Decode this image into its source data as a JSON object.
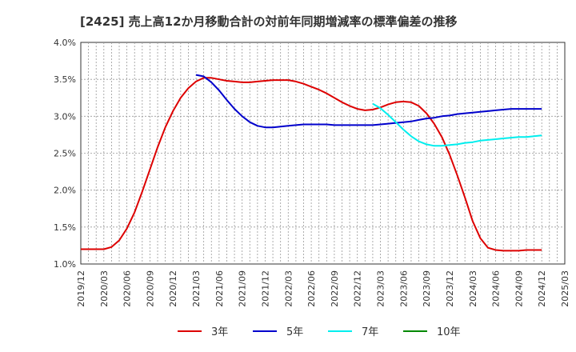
{
  "chart_data": {
    "type": "line",
    "title": "[2425]  売上高12か月移動合計の対前年同期増減率の標準偏差の推移",
    "xlabel": "",
    "ylabel": "",
    "x_ticks": [
      "2019/12",
      "2020/03",
      "2020/06",
      "2020/09",
      "2020/12",
      "2021/03",
      "2021/06",
      "2021/09",
      "2021/12",
      "2022/03",
      "2022/06",
      "2022/09",
      "2022/12",
      "2023/03",
      "2023/06",
      "2023/09",
      "2023/12",
      "2024/03",
      "2024/06",
      "2024/09",
      "2024/12",
      "2025/03"
    ],
    "y_ticks": [
      "1.0%",
      "1.5%",
      "2.0%",
      "2.5%",
      "3.0%",
      "3.5%",
      "4.0%"
    ],
    "ylim": [
      1.0,
      4.0
    ],
    "grid": true,
    "legend_position": "bottom",
    "series": [
      {
        "name": "3年",
        "color": "#dd0000",
        "points": [
          [
            "2019/12",
            1.2
          ],
          [
            "2020/01",
            1.2
          ],
          [
            "2020/02",
            1.2
          ],
          [
            "2020/03",
            1.2
          ],
          [
            "2020/04",
            1.23
          ],
          [
            "2020/05",
            1.32
          ],
          [
            "2020/06",
            1.48
          ],
          [
            "2020/07",
            1.7
          ],
          [
            "2020/08",
            1.98
          ],
          [
            "2020/09",
            2.28
          ],
          [
            "2020/10",
            2.58
          ],
          [
            "2020/11",
            2.85
          ],
          [
            "2020/12",
            3.07
          ],
          [
            "2021/01",
            3.25
          ],
          [
            "2021/02",
            3.38
          ],
          [
            "2021/03",
            3.47
          ],
          [
            "2021/04",
            3.52
          ],
          [
            "2021/05",
            3.52
          ],
          [
            "2021/06",
            3.5
          ],
          [
            "2021/07",
            3.48
          ],
          [
            "2021/08",
            3.47
          ],
          [
            "2021/09",
            3.46
          ],
          [
            "2021/10",
            3.46
          ],
          [
            "2021/11",
            3.47
          ],
          [
            "2021/12",
            3.48
          ],
          [
            "2022/01",
            3.49
          ],
          [
            "2022/02",
            3.49
          ],
          [
            "2022/03",
            3.49
          ],
          [
            "2022/04",
            3.47
          ],
          [
            "2022/05",
            3.44
          ],
          [
            "2022/06",
            3.4
          ],
          [
            "2022/07",
            3.36
          ],
          [
            "2022/08",
            3.31
          ],
          [
            "2022/09",
            3.25
          ],
          [
            "2022/10",
            3.19
          ],
          [
            "2022/11",
            3.14
          ],
          [
            "2022/12",
            3.1
          ],
          [
            "2023/01",
            3.08
          ],
          [
            "2023/02",
            3.09
          ],
          [
            "2023/03",
            3.12
          ],
          [
            "2023/04",
            3.16
          ],
          [
            "2023/05",
            3.19
          ],
          [
            "2023/06",
            3.2
          ],
          [
            "2023/07",
            3.19
          ],
          [
            "2023/08",
            3.14
          ],
          [
            "2023/09",
            3.04
          ],
          [
            "2023/10",
            2.9
          ],
          [
            "2023/11",
            2.72
          ],
          [
            "2023/12",
            2.48
          ],
          [
            "2024/01",
            2.2
          ],
          [
            "2024/02",
            1.9
          ],
          [
            "2024/03",
            1.58
          ],
          [
            "2024/04",
            1.35
          ],
          [
            "2024/05",
            1.22
          ],
          [
            "2024/06",
            1.19
          ],
          [
            "2024/07",
            1.18
          ],
          [
            "2024/08",
            1.18
          ],
          [
            "2024/09",
            1.18
          ],
          [
            "2024/10",
            1.19
          ],
          [
            "2024/11",
            1.19
          ],
          [
            "2024/12",
            1.19
          ]
        ]
      },
      {
        "name": "5年",
        "color": "#0000cc",
        "points": [
          [
            "2021/03",
            3.56
          ],
          [
            "2021/04",
            3.54
          ],
          [
            "2021/05",
            3.46
          ],
          [
            "2021/06",
            3.35
          ],
          [
            "2021/07",
            3.22
          ],
          [
            "2021/08",
            3.1
          ],
          [
            "2021/09",
            3.0
          ],
          [
            "2021/10",
            2.92
          ],
          [
            "2021/11",
            2.87
          ],
          [
            "2021/12",
            2.85
          ],
          [
            "2022/01",
            2.85
          ],
          [
            "2022/02",
            2.86
          ],
          [
            "2022/03",
            2.87
          ],
          [
            "2022/04",
            2.88
          ],
          [
            "2022/05",
            2.89
          ],
          [
            "2022/06",
            2.89
          ],
          [
            "2022/07",
            2.89
          ],
          [
            "2022/08",
            2.89
          ],
          [
            "2022/09",
            2.88
          ],
          [
            "2022/10",
            2.88
          ],
          [
            "2022/11",
            2.88
          ],
          [
            "2022/12",
            2.88
          ],
          [
            "2023/01",
            2.88
          ],
          [
            "2023/02",
            2.88
          ],
          [
            "2023/03",
            2.89
          ],
          [
            "2023/04",
            2.9
          ],
          [
            "2023/05",
            2.91
          ],
          [
            "2023/06",
            2.92
          ],
          [
            "2023/07",
            2.93
          ],
          [
            "2023/08",
            2.95
          ],
          [
            "2023/09",
            2.97
          ],
          [
            "2023/10",
            2.98
          ],
          [
            "2023/11",
            3.0
          ],
          [
            "2023/12",
            3.01
          ],
          [
            "2024/01",
            3.03
          ],
          [
            "2024/02",
            3.04
          ],
          [
            "2024/03",
            3.05
          ],
          [
            "2024/04",
            3.06
          ],
          [
            "2024/05",
            3.07
          ],
          [
            "2024/06",
            3.08
          ],
          [
            "2024/07",
            3.09
          ],
          [
            "2024/08",
            3.1
          ],
          [
            "2024/09",
            3.1
          ],
          [
            "2024/10",
            3.1
          ],
          [
            "2024/11",
            3.1
          ],
          [
            "2024/12",
            3.1
          ]
        ]
      },
      {
        "name": "7年",
        "color": "#00eeee",
        "points": [
          [
            "2023/02",
            3.17
          ],
          [
            "2023/03",
            3.11
          ],
          [
            "2023/04",
            3.02
          ],
          [
            "2023/05",
            2.92
          ],
          [
            "2023/06",
            2.82
          ],
          [
            "2023/07",
            2.73
          ],
          [
            "2023/08",
            2.66
          ],
          [
            "2023/09",
            2.62
          ],
          [
            "2023/10",
            2.6
          ],
          [
            "2023/11",
            2.6
          ],
          [
            "2023/12",
            2.61
          ],
          [
            "2024/01",
            2.62
          ],
          [
            "2024/02",
            2.64
          ],
          [
            "2024/03",
            2.65
          ],
          [
            "2024/04",
            2.67
          ],
          [
            "2024/05",
            2.68
          ],
          [
            "2024/06",
            2.69
          ],
          [
            "2024/07",
            2.7
          ],
          [
            "2024/08",
            2.71
          ],
          [
            "2024/09",
            2.72
          ],
          [
            "2024/10",
            2.72
          ],
          [
            "2024/11",
            2.73
          ],
          [
            "2024/12",
            2.74
          ]
        ]
      },
      {
        "name": "10年",
        "color": "#008800",
        "points": []
      }
    ]
  }
}
